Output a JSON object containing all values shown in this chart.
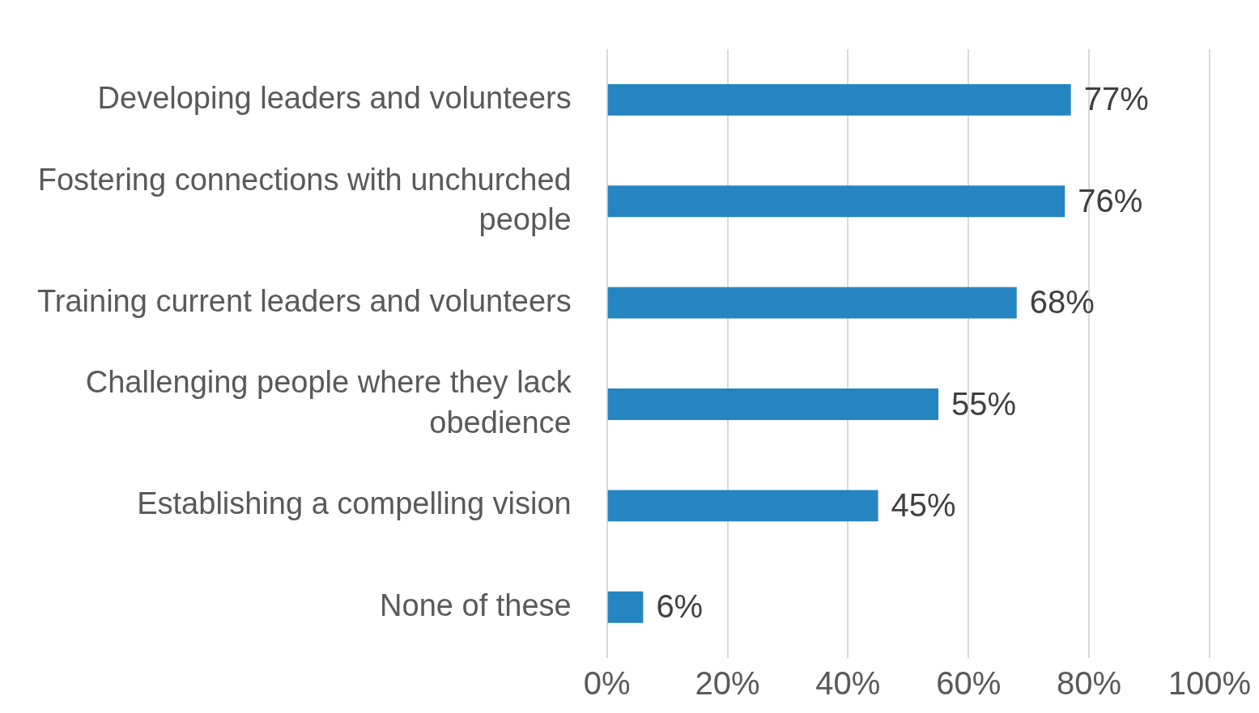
{
  "chart_data": {
    "type": "bar",
    "orientation": "horizontal",
    "categories": [
      "Developing leaders and volunteers",
      "Fostering connections with unchurched people",
      "Training current leaders and volunteers",
      "Challenging people where they lack obedience",
      "Establishing a compelling vision",
      "None of these"
    ],
    "values": [
      77,
      76,
      68,
      55,
      45,
      6
    ],
    "color": "#2585c1",
    "value_labels": [
      "77%",
      "76%",
      "68%",
      "55%",
      "45%",
      "6%"
    ],
    "xlim": [
      0,
      100
    ],
    "xticks": [
      {
        "value": 0,
        "label": "0%"
      },
      {
        "value": 20,
        "label": "20%"
      },
      {
        "value": 40,
        "label": "40%"
      },
      {
        "value": 60,
        "label": "60%"
      },
      {
        "value": 80,
        "label": "80%"
      },
      {
        "value": 100,
        "label": "100%"
      }
    ],
    "grid": "x",
    "legend": false
  }
}
